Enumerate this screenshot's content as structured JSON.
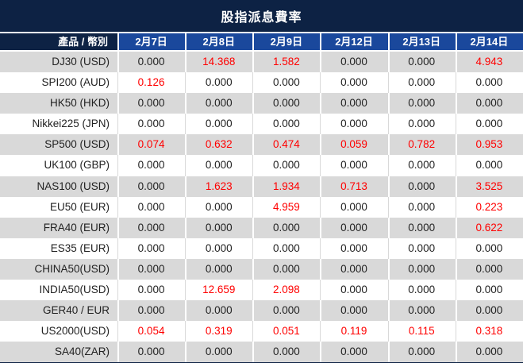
{
  "title": "股指派息費率",
  "colors": {
    "title_bar_navy": "#0d2244",
    "header_blue": "#1a489c",
    "row_gray": "#d9d9d9",
    "row_white": "#ffffff",
    "value_red": "#ff0000",
    "value_dark": "#222222"
  },
  "table": {
    "header": {
      "product_label": "產品 / 幣別",
      "dates": [
        "2月7日",
        "2月8日",
        "2月9日",
        "2月12日",
        "2月13日",
        "2月14日"
      ]
    },
    "rows": [
      {
        "product": "DJ30 (USD)",
        "values": [
          "0.000",
          "14.368",
          "1.582",
          "0.000",
          "0.000",
          "4.943"
        ],
        "red": [
          false,
          true,
          true,
          false,
          false,
          true
        ]
      },
      {
        "product": "SPI200 (AUD)",
        "values": [
          "0.126",
          "0.000",
          "0.000",
          "0.000",
          "0.000",
          "0.000"
        ],
        "red": [
          true,
          false,
          false,
          false,
          false,
          false
        ]
      },
      {
        "product": "HK50 (HKD)",
        "values": [
          "0.000",
          "0.000",
          "0.000",
          "0.000",
          "0.000",
          "0.000"
        ],
        "red": [
          false,
          false,
          false,
          false,
          false,
          false
        ]
      },
      {
        "product": "Nikkei225 (JPN)",
        "values": [
          "0.000",
          "0.000",
          "0.000",
          "0.000",
          "0.000",
          "0.000"
        ],
        "red": [
          false,
          false,
          false,
          false,
          false,
          false
        ]
      },
      {
        "product": "SP500 (USD)",
        "values": [
          "0.074",
          "0.632",
          "0.474",
          "0.059",
          "0.782",
          "0.953"
        ],
        "red": [
          true,
          true,
          true,
          true,
          true,
          true
        ]
      },
      {
        "product": "UK100 (GBP)",
        "values": [
          "0.000",
          "0.000",
          "0.000",
          "0.000",
          "0.000",
          "0.000"
        ],
        "red": [
          false,
          false,
          false,
          false,
          false,
          false
        ]
      },
      {
        "product": "NAS100 (USD)",
        "values": [
          "0.000",
          "1.623",
          "1.934",
          "0.713",
          "0.000",
          "3.525"
        ],
        "red": [
          false,
          true,
          true,
          true,
          false,
          true
        ]
      },
      {
        "product": "EU50 (EUR)",
        "values": [
          "0.000",
          "0.000",
          "4.959",
          "0.000",
          "0.000",
          "0.223"
        ],
        "red": [
          false,
          false,
          true,
          false,
          false,
          true
        ]
      },
      {
        "product": "FRA40 (EUR)",
        "values": [
          "0.000",
          "0.000",
          "0.000",
          "0.000",
          "0.000",
          "0.622"
        ],
        "red": [
          false,
          false,
          false,
          false,
          false,
          true
        ]
      },
      {
        "product": "ES35 (EUR)",
        "values": [
          "0.000",
          "0.000",
          "0.000",
          "0.000",
          "0.000",
          "0.000"
        ],
        "red": [
          false,
          false,
          false,
          false,
          false,
          false
        ]
      },
      {
        "product": "CHINA50(USD)",
        "values": [
          "0.000",
          "0.000",
          "0.000",
          "0.000",
          "0.000",
          "0.000"
        ],
        "red": [
          false,
          false,
          false,
          false,
          false,
          false
        ]
      },
      {
        "product": "INDIA50(USD)",
        "values": [
          "0.000",
          "12.659",
          "2.098",
          "0.000",
          "0.000",
          "0.000"
        ],
        "red": [
          false,
          true,
          true,
          false,
          false,
          false
        ]
      },
      {
        "product": "GER40 / EUR",
        "values": [
          "0.000",
          "0.000",
          "0.000",
          "0.000",
          "0.000",
          "0.000"
        ],
        "red": [
          false,
          false,
          false,
          false,
          false,
          false
        ]
      },
      {
        "product": "US2000(USD)",
        "values": [
          "0.054",
          "0.319",
          "0.051",
          "0.119",
          "0.115",
          "0.318"
        ],
        "red": [
          true,
          true,
          true,
          true,
          true,
          true
        ]
      },
      {
        "product": "SA40(ZAR)",
        "values": [
          "0.000",
          "0.000",
          "0.000",
          "0.000",
          "0.000",
          "0.000"
        ],
        "red": [
          false,
          false,
          false,
          false,
          false,
          false
        ]
      }
    ]
  }
}
